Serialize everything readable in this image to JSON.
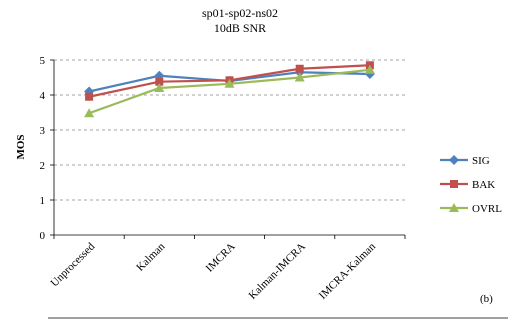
{
  "chart_data": {
    "type": "line",
    "title": "sp01-sp02-ns02",
    "subtitle": "10dB SNR",
    "xlabel": "",
    "ylabel": "MOS",
    "ylim": [
      0,
      5
    ],
    "yticks": [
      0,
      1,
      2,
      3,
      4,
      5
    ],
    "grid": "horizontal dashed",
    "legend_position": "right",
    "panel_label": "(b)",
    "categories": [
      "Unprocessed",
      "Kalman",
      "IMCRA",
      "Kalman-IMCRA",
      "IMCRA-Kalman"
    ],
    "series": [
      {
        "name": "SIG",
        "color": "#4F81BD",
        "marker": "diamond",
        "values": [
          4.1,
          4.55,
          4.4,
          4.65,
          4.6
        ]
      },
      {
        "name": "BAK",
        "color": "#C0504D",
        "marker": "square",
        "values": [
          3.95,
          4.38,
          4.42,
          4.75,
          4.85
        ]
      },
      {
        "name": "OVRL",
        "color": "#9BBB59",
        "marker": "triangle",
        "values": [
          3.48,
          4.2,
          4.32,
          4.5,
          4.72
        ]
      }
    ]
  }
}
